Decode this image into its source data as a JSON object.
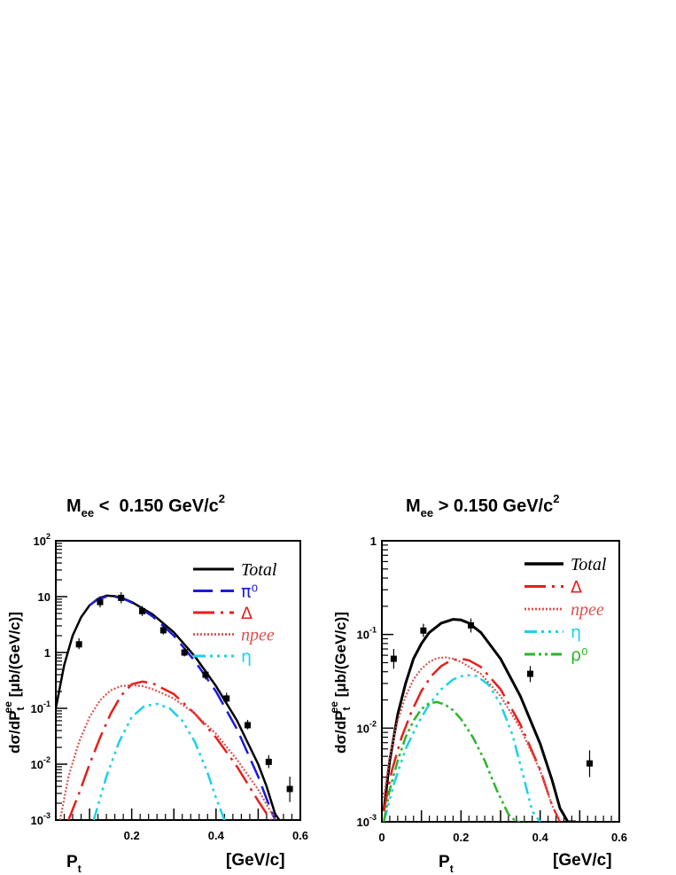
{
  "chart_data": [
    {
      "type": "line",
      "title": "M_ee < 0.150 GeV/c^2",
      "title_parts": {
        "main": "M",
        "sub": "ee",
        "rest": " <  0.150 GeV/c",
        "sup": "2"
      },
      "xlabel": "P_t",
      "xlabel_parts": {
        "main": "P",
        "sub": "t"
      },
      "xunit": "[GeV/c]",
      "ylabel": "dσ/dP_t^ee [μb/(GeV/c)]",
      "ylabel_parts": {
        "a": "dσ/dP",
        "sub": "t",
        "sup": "ee",
        "b": " [μb/(GeV/c)]"
      },
      "xlim": [
        0.02,
        0.6
      ],
      "ylim": [
        0.001,
        100
      ],
      "yscale": "log",
      "xticks": [
        0.2,
        0.4,
        0.6
      ],
      "xtick_labels": [
        "0.2",
        "0.4",
        "0.6"
      ],
      "yticks": [
        0.001,
        0.01,
        0.1,
        1,
        10,
        100
      ],
      "ytick_labels": [
        {
          "base": "10",
          "exp": "-3"
        },
        {
          "base": "10",
          "exp": "-2"
        },
        {
          "base": "10",
          "exp": "-1"
        },
        {
          "base": "1",
          "exp": ""
        },
        {
          "base": "10",
          "exp": ""
        },
        {
          "base": "10",
          "exp": "2"
        }
      ],
      "legend_position": "top-right",
      "legend": [
        {
          "label": "Total",
          "series": "Total",
          "italic": true
        },
        {
          "label": "π⁰",
          "series": "pi0",
          "italic": false
        },
        {
          "label": "Δ",
          "series": "Delta",
          "italic": false
        },
        {
          "label": "npee",
          "series": "npee",
          "italic": true
        },
        {
          "label": "η",
          "series": "eta",
          "italic": false
        }
      ],
      "data_points": {
        "x": [
          0.075,
          0.125,
          0.175,
          0.225,
          0.275,
          0.325,
          0.375,
          0.425,
          0.475,
          0.525,
          0.575
        ],
        "y": [
          1.4,
          8.0,
          9.5,
          5.5,
          2.5,
          1.0,
          0.4,
          0.15,
          0.05,
          0.011,
          0.0036
        ],
        "yerr_up": [
          1.8,
          10.2,
          12.0,
          6.8,
          3.0,
          1.2,
          0.5,
          0.19,
          0.062,
          0.0145,
          0.006
        ],
        "yerr_lo": [
          1.15,
          6.4,
          7.6,
          4.5,
          2.1,
          0.85,
          0.33,
          0.125,
          0.042,
          0.0085,
          0.0021
        ]
      },
      "series": [
        {
          "name": "Total",
          "color": "#000000",
          "dash": "",
          "width": 2.5,
          "x": [
            0.02,
            0.04,
            0.06,
            0.08,
            0.1,
            0.12,
            0.14,
            0.16,
            0.18,
            0.2,
            0.25,
            0.3,
            0.35,
            0.4,
            0.45,
            0.5,
            0.52,
            0.54,
            0.55
          ],
          "y": [
            0.1,
            0.6,
            2.0,
            4.3,
            7.0,
            9.2,
            10.4,
            10.2,
            9.3,
            8.0,
            4.8,
            2.3,
            0.85,
            0.25,
            0.06,
            0.01,
            0.004,
            0.0013,
            0.001
          ]
        },
        {
          "name": "π⁰",
          "color": "#1a1adc",
          "dash": "22 9",
          "width": 2.5,
          "x": [
            0.1,
            0.12,
            0.14,
            0.16,
            0.18,
            0.2,
            0.25,
            0.3,
            0.35,
            0.4,
            0.45,
            0.5,
            0.52,
            0.54
          ],
          "y": [
            7.0,
            9.0,
            10.0,
            10.0,
            9.2,
            7.8,
            4.4,
            2.0,
            0.7,
            0.2,
            0.042,
            0.006,
            0.0024,
            0.001
          ]
        },
        {
          "name": "Δ",
          "color": "#e61e1e",
          "dash": "24 7 3 7",
          "width": 2.5,
          "x": [
            0.05,
            0.075,
            0.1,
            0.125,
            0.15,
            0.175,
            0.2,
            0.225,
            0.25,
            0.3,
            0.35,
            0.4,
            0.45,
            0.5,
            0.53
          ],
          "y": [
            0.001,
            0.003,
            0.01,
            0.03,
            0.08,
            0.17,
            0.27,
            0.3,
            0.28,
            0.18,
            0.08,
            0.03,
            0.009,
            0.0022,
            0.001
          ]
        },
        {
          "name": "npee",
          "color": "#d9534f",
          "dash": "2 2",
          "width": 2.2,
          "x": [
            0.03,
            0.05,
            0.075,
            0.1,
            0.125,
            0.15,
            0.175,
            0.2,
            0.225,
            0.25,
            0.3,
            0.35,
            0.4,
            0.45,
            0.5,
            0.53,
            0.54
          ],
          "y": [
            0.001,
            0.006,
            0.025,
            0.07,
            0.14,
            0.21,
            0.25,
            0.26,
            0.25,
            0.22,
            0.15,
            0.08,
            0.035,
            0.012,
            0.0035,
            0.0014,
            0.001
          ]
        },
        {
          "name": "η",
          "color": "#1ad2e6",
          "dash": "14 5 3 5 3 5 3 5",
          "width": 2.5,
          "x": [
            0.11,
            0.14,
            0.17,
            0.2,
            0.23,
            0.26,
            0.29,
            0.32,
            0.35,
            0.38,
            0.4,
            0.42
          ],
          "y": [
            0.001,
            0.006,
            0.025,
            0.07,
            0.11,
            0.12,
            0.1,
            0.06,
            0.025,
            0.007,
            0.0025,
            0.001
          ]
        }
      ]
    },
    {
      "type": "line",
      "title": "M_ee > 0.150 GeV/c^2",
      "title_parts": {
        "main": "M",
        "sub": "ee",
        "rest": " > 0.150 GeV/c",
        "sup": "2"
      },
      "xlabel": "P_t",
      "xlabel_parts": {
        "main": "P",
        "sub": "t"
      },
      "xunit": "[GeV/c]",
      "ylabel": "dσ/dP_t^ee [μb/(GeV/c)]",
      "ylabel_parts": {
        "a": "dσ/dP",
        "sub": "t",
        "sup": "ee",
        "b": " [μb/(GeV/c)]"
      },
      "xlim": [
        0.0,
        0.6
      ],
      "ylim": [
        0.001,
        1
      ],
      "yscale": "log",
      "xticks": [
        0.0,
        0.2,
        0.4,
        0.6
      ],
      "xtick_labels": [
        "0",
        "0.2",
        "0.4",
        "0.6"
      ],
      "yticks": [
        0.001,
        0.01,
        0.1,
        1
      ],
      "ytick_labels": [
        {
          "base": "10",
          "exp": "-3"
        },
        {
          "base": "10",
          "exp": "-2"
        },
        {
          "base": "10",
          "exp": "-1"
        },
        {
          "base": "1",
          "exp": ""
        }
      ],
      "legend_position": "top-right",
      "legend": [
        {
          "label": "Total",
          "series": "Total",
          "italic": true
        },
        {
          "label": "Δ",
          "series": "Delta",
          "italic": false
        },
        {
          "label": "npee",
          "series": "npee",
          "italic": true
        },
        {
          "label": "η",
          "series": "eta",
          "italic": false
        },
        {
          "label": "ρ⁰",
          "series": "rho0",
          "italic": false
        }
      ],
      "data_points": {
        "x": [
          0.03,
          0.105,
          0.225,
          0.375,
          0.525
        ],
        "y": [
          0.055,
          0.11,
          0.125,
          0.038,
          0.0042
        ],
        "yerr_up": [
          0.07,
          0.13,
          0.148,
          0.046,
          0.0058
        ],
        "yerr_lo": [
          0.043,
          0.094,
          0.105,
          0.031,
          0.003
        ]
      },
      "series": [
        {
          "name": "Total",
          "color": "#000000",
          "dash": "",
          "width": 3,
          "x": [
            0.005,
            0.02,
            0.04,
            0.06,
            0.08,
            0.1,
            0.12,
            0.15,
            0.18,
            0.2,
            0.22,
            0.25,
            0.3,
            0.35,
            0.4,
            0.43,
            0.45,
            0.47,
            0.49
          ],
          "y": [
            0.0013,
            0.0045,
            0.014,
            0.03,
            0.055,
            0.08,
            0.105,
            0.132,
            0.145,
            0.143,
            0.132,
            0.105,
            0.055,
            0.022,
            0.0068,
            0.0028,
            0.0014,
            0.001,
            0.001
          ]
        },
        {
          "name": "Δ",
          "color": "#e61e1e",
          "dash": "24 7 3 7",
          "width": 2.5,
          "x": [
            0.005,
            0.025,
            0.05,
            0.075,
            0.1,
            0.125,
            0.15,
            0.175,
            0.2,
            0.22,
            0.25,
            0.3,
            0.35,
            0.4,
            0.43,
            0.45
          ],
          "y": [
            0.0013,
            0.0035,
            0.008,
            0.015,
            0.025,
            0.036,
            0.046,
            0.053,
            0.055,
            0.053,
            0.045,
            0.026,
            0.011,
            0.0036,
            0.0015,
            0.001
          ]
        },
        {
          "name": "npee",
          "color": "#d9534f",
          "dash": "2 2",
          "width": 2.2,
          "x": [
            0.005,
            0.02,
            0.04,
            0.06,
            0.08,
            0.1,
            0.12,
            0.14,
            0.16,
            0.18,
            0.2,
            0.25,
            0.3,
            0.35,
            0.4,
            0.43,
            0.45
          ],
          "y": [
            0.0018,
            0.005,
            0.012,
            0.022,
            0.033,
            0.043,
            0.051,
            0.056,
            0.057,
            0.055,
            0.051,
            0.038,
            0.022,
            0.01,
            0.0035,
            0.0015,
            0.001
          ]
        },
        {
          "name": "η",
          "color": "#1ad2e6",
          "dash": "14 5 3 5 3 5 3 5",
          "width": 2.5,
          "x": [
            0.005,
            0.03,
            0.06,
            0.09,
            0.12,
            0.15,
            0.18,
            0.21,
            0.24,
            0.27,
            0.3,
            0.33,
            0.36,
            0.38,
            0.4
          ],
          "y": [
            0.001,
            0.0025,
            0.006,
            0.011,
            0.018,
            0.026,
            0.033,
            0.037,
            0.036,
            0.029,
            0.018,
            0.0085,
            0.0028,
            0.0013,
            0.001
          ]
        },
        {
          "name": "ρ⁰",
          "color": "#2ab52a",
          "dash": "12 4 3 4 3 4",
          "width": 2.5,
          "x": [
            0.005,
            0.02,
            0.04,
            0.06,
            0.08,
            0.1,
            0.12,
            0.14,
            0.16,
            0.18,
            0.2,
            0.23,
            0.26,
            0.29,
            0.32,
            0.34,
            0.36
          ],
          "y": [
            0.001,
            0.0022,
            0.0045,
            0.008,
            0.012,
            0.016,
            0.0185,
            0.019,
            0.0178,
            0.0155,
            0.0125,
            0.008,
            0.0045,
            0.0022,
            0.0012,
            0.001,
            0.001
          ]
        }
      ]
    }
  ]
}
